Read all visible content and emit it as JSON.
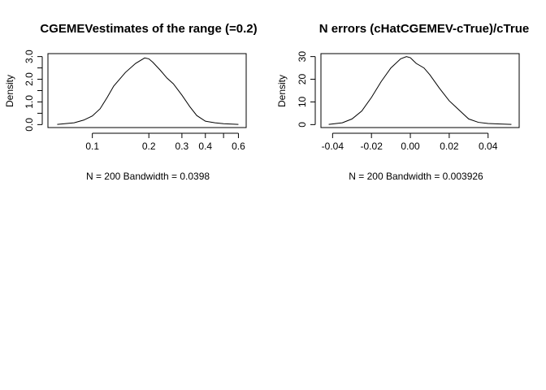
{
  "chart_data": [
    {
      "type": "line",
      "title": "CGEMEVestimates of the range (=0.2)",
      "xlabel": "N = 200   Bandwidth = 0.0398",
      "ylabel": "Density",
      "x_scale": "log",
      "xlim": [
        0.058,
        0.66
      ],
      "ylim": [
        0,
        3.0
      ],
      "x_ticks": [
        0.1,
        0.2,
        0.3,
        0.4,
        0.6
      ],
      "x_minor_ticks": [
        0.5
      ],
      "x_tick_labels": [
        "0.1",
        "0.2",
        "0.3",
        "0.4",
        "0.6"
      ],
      "y_ticks": [
        0,
        0.5,
        1.0,
        1.5,
        2.0,
        2.5,
        3.0
      ],
      "y_tick_labels": [
        "0.0",
        "1.0",
        "2.0",
        "3.0"
      ],
      "y_labeled_ticks": [
        0,
        1.0,
        2.0,
        3.0
      ],
      "series": [
        {
          "x": [
            0.065,
            0.08,
            0.09,
            0.1,
            0.11,
            0.12,
            0.13,
            0.15,
            0.17,
            0.19,
            0.2,
            0.21,
            0.23,
            0.25,
            0.27,
            0.3,
            0.33,
            0.36,
            0.4,
            0.45,
            0.5,
            0.6
          ],
          "values": [
            0.01,
            0.08,
            0.2,
            0.38,
            0.7,
            1.2,
            1.7,
            2.3,
            2.7,
            2.94,
            2.9,
            2.75,
            2.4,
            2.05,
            1.8,
            1.3,
            0.8,
            0.4,
            0.15,
            0.08,
            0.04,
            0.01
          ]
        }
      ]
    },
    {
      "type": "line",
      "title": "N errors (cHatCGEMEV-cTrue)/cTrue",
      "xlabel": "N = 200   Bandwidth = 0.003926",
      "ylabel": "Density",
      "xlim": [
        -0.046,
        0.056
      ],
      "ylim": [
        0,
        30
      ],
      "x_ticks": [
        -0.04,
        -0.02,
        0.0,
        0.02,
        0.04
      ],
      "x_tick_labels": [
        "-0.04",
        "-0.02",
        "0.00",
        "0.02",
        "0.04"
      ],
      "y_ticks": [
        0,
        10,
        20,
        30
      ],
      "y_tick_labels": [
        "0",
        "10",
        "20",
        "30"
      ],
      "series": [
        {
          "x": [
            -0.042,
            -0.035,
            -0.03,
            -0.025,
            -0.02,
            -0.015,
            -0.01,
            -0.005,
            -0.002,
            0.0,
            0.003,
            0.007,
            0.01,
            0.015,
            0.02,
            0.025,
            0.03,
            0.035,
            0.04,
            0.045,
            0.052
          ],
          "values": [
            0.1,
            0.8,
            2.5,
            6.0,
            12.0,
            19.0,
            25.0,
            29.0,
            30.0,
            29.5,
            27.0,
            25.0,
            22.0,
            16.0,
            10.5,
            6.5,
            2.5,
            1.0,
            0.5,
            0.3,
            0.1
          ]
        }
      ]
    }
  ]
}
